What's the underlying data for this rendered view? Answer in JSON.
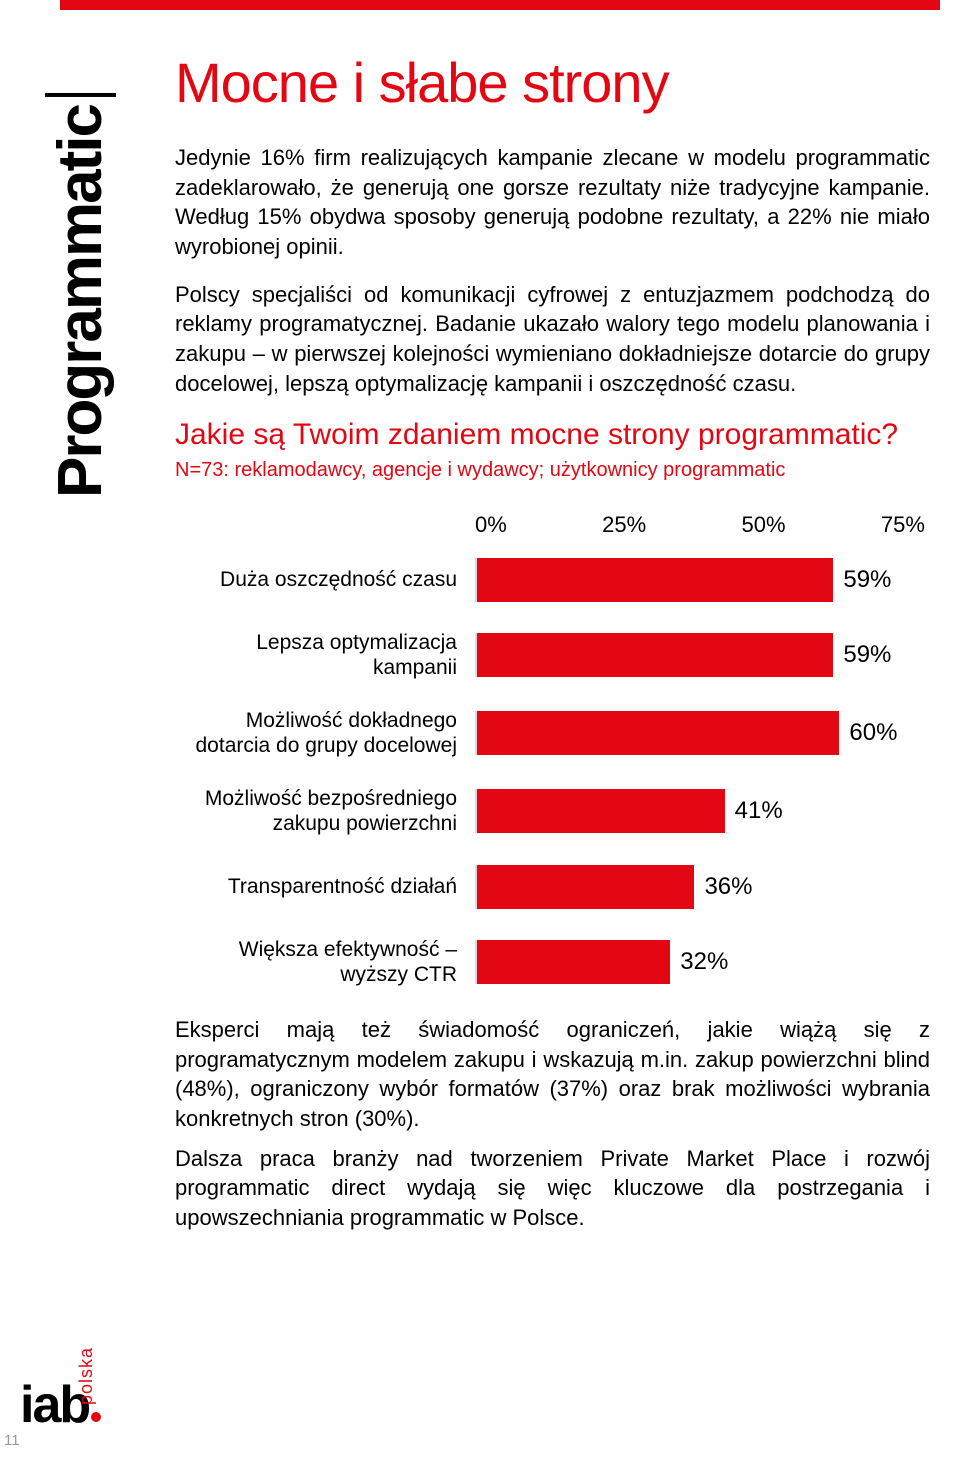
{
  "accent_color": "#e30613",
  "side_label": "Programmatic",
  "title": "Mocne i słabe strony",
  "para1": "Jedynie 16% firm realizujących kampanie zlecane w modelu programmatic zadeklarowało, że generują one gorsze rezultaty niże tradycyjne kampanie. Według 15% obydwa sposoby generują podobne rezultaty, a 22% nie miało wyrobionej opinii.",
  "para2": "Polscy specjaliści od komunikacji cyfrowej z entuzjazmem podchodzą do reklamy programatycznej. Badanie ukazało walory tego modelu planowania i zakupu – w pierwszej kolejności wymieniano dokładniejsze dotarcie do grupy docelowej, lepszą optymalizację kampanii i oszczędność czasu.",
  "chart_title": "Jakie są Twoim zdaniem mocne strony programmatic?",
  "chart_sub": "N=73: reklamodawcy, agencje i wydawcy; użytkownicy programmatic",
  "chart": {
    "type": "bar",
    "orientation": "horizontal",
    "xlim": [
      0,
      75
    ],
    "ticks": [
      "0%",
      "25%",
      "50%",
      "75%"
    ],
    "bar_color": "#e30613",
    "gridline_color": "#d9d9d9",
    "label_fontsize": 21,
    "value_fontsize": 24,
    "items": [
      {
        "label": "Duża oszczędność czasu",
        "value": 59,
        "display": "59%"
      },
      {
        "label": "Lepsza optymalizacja kampanii",
        "value": 59,
        "display": "59%"
      },
      {
        "label": "Możliwość dokładnego dotarcia do grupy docelowej",
        "value": 60,
        "display": "60%"
      },
      {
        "label": "Możliwość bezpośredniego zakupu powierzchni",
        "value": 41,
        "display": "41%"
      },
      {
        "label": "Transparentność działań",
        "value": 36,
        "display": "36%"
      },
      {
        "label": "Większa efektywność – wyższy CTR",
        "value": 32,
        "display": "32%"
      }
    ]
  },
  "para3": "Eksperci mają też świadomość ograniczeń, jakie wiążą się z programatycznym modelem zakupu i wskazują m.in. zakup powierzchni blind (48%), ograniczony wybór formatów (37%) oraz brak możliwości wybrania konkretnych stron (30%).",
  "para4": "Dalsza praca branży nad tworzeniem Private Market Place i rozwój programmatic direct wydają się więc kluczowe dla postrzegania i upowszechniania programmatic w Polsce.",
  "logo": {
    "main": "iab",
    "suffix": "polska"
  },
  "page_number": "11"
}
